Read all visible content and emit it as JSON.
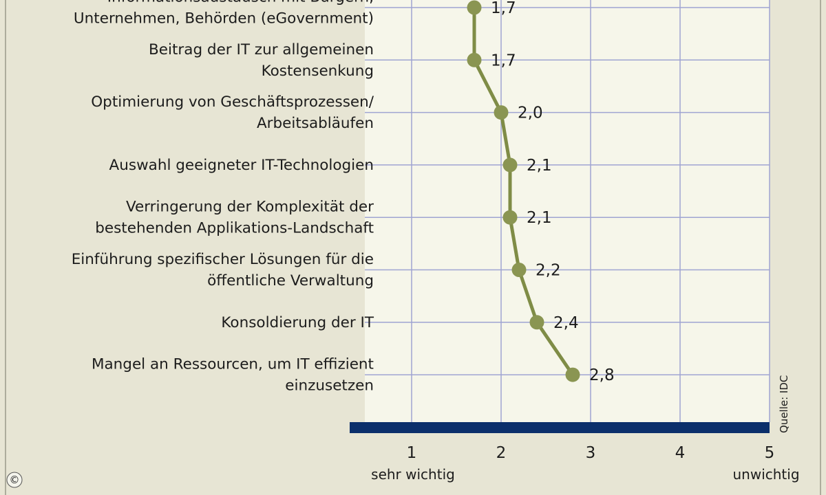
{
  "chart_data": {
    "type": "line",
    "orientation": "horizontal",
    "categories": [
      [
        "Informationsaustausch mit Bürgern,",
        "Unternehmen, Behörden (eGovernment)"
      ],
      [
        "Beitrag der IT zur allgemeinen",
        "Kostensenkung"
      ],
      [
        "Optimierung von Geschäftsprozessen/",
        "Arbeitsabläufen"
      ],
      [
        "Auswahl geeigneter IT-Technologien"
      ],
      [
        "Verringerung der Komplexität der",
        "bestehenden Applikations-Landschaft"
      ],
      [
        "Einführung spezifischer Lösungen für die",
        "öffentliche Verwaltung"
      ],
      [
        "Konsoldierung der IT"
      ],
      [
        "Mangel an Ressourcen, um IT effizient",
        "einzusetzen"
      ]
    ],
    "values": [
      1.7,
      1.7,
      2.0,
      2.1,
      2.1,
      2.2,
      2.4,
      2.8
    ],
    "value_labels": [
      "1,7",
      "1,7",
      "2,0",
      "2,1",
      "2,1",
      "2,2",
      "2,4",
      "2,8"
    ],
    "xlim": [
      1,
      5
    ],
    "x_ticks": [
      "1",
      "2",
      "3",
      "4",
      "5"
    ],
    "x_low_label": "sehr wichtig",
    "x_high_label": "unwichtig",
    "grid": true,
    "source": "Quelle: IDC",
    "copyright": "©",
    "colors": {
      "background": "#e7e5d4",
      "plot_background": "#f6f6ea",
      "grid": "#9fa4d2",
      "line": "#7f8c46",
      "marker": "#8a9552",
      "axis_bar": "#0b2f6b"
    }
  }
}
